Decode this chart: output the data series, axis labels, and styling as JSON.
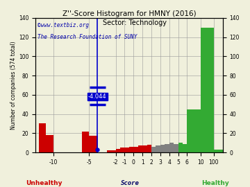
{
  "title": "Z''-Score Histogram for HMNY (2016)",
  "subtitle": "Sector: Technology",
  "watermark1": "©www.textbiz.org",
  "watermark2": "The Research Foundation of SUNY",
  "ylabel_left": "Number of companies (574 total)",
  "xlabel": "Score",
  "xlabel_unhealthy": "Unhealthy",
  "xlabel_healthy": "Healthy",
  "marker_value": -4.044,
  "marker_label": "-4.044",
  "ylim": [
    0,
    140
  ],
  "background_color": "#f0f0dc",
  "grid_color": "#999999",
  "marker_color": "#0000cc",
  "title_color": "#000000",
  "watermark_color": "#0000aa",
  "unhealthy_color": "#cc0000",
  "healthy_color": "#33aa33",
  "score_ticks": [
    -10,
    -5,
    -2,
    -1,
    0,
    1,
    2,
    3,
    4,
    5,
    6,
    10,
    100
  ],
  "display_pos": [
    0,
    5,
    8,
    9,
    10,
    11,
    12,
    13,
    14,
    15,
    16,
    17,
    18
  ],
  "bar_definitions": [
    [
      -12,
      -11,
      30,
      "#cc0000"
    ],
    [
      -11,
      -10,
      18,
      "#cc0000"
    ],
    [
      -6,
      -5,
      22,
      "#cc0000"
    ],
    [
      -5,
      -4,
      17,
      "#cc0000"
    ],
    [
      -3,
      -2,
      2,
      "#cc0000"
    ],
    [
      -2,
      -1,
      5,
      "#cc0000"
    ],
    [
      -1,
      0,
      7,
      "#cc0000"
    ],
    [
      0,
      1,
      8,
      "#cc0000"
    ],
    [
      1,
      2,
      9,
      "#cc0000"
    ],
    [
      2,
      3,
      6,
      "#808080"
    ],
    [
      3,
      4,
      11,
      "#808080"
    ],
    [
      4,
      5,
      10,
      "#808080"
    ],
    [
      5,
      6,
      10,
      "#33aa33"
    ],
    [
      6,
      10,
      45,
      "#33aa33"
    ],
    [
      10,
      100,
      130,
      "#33aa33"
    ],
    [
      100,
      110,
      3,
      "#33aa33"
    ]
  ],
  "small_bars": [
    [
      -0.5,
      0.5,
      3,
      "#cc0000"
    ],
    [
      0.5,
      1.5,
      4,
      "#cc0000"
    ],
    [
      1.5,
      2.5,
      5,
      "#cc0000"
    ],
    [
      2.5,
      3.5,
      6,
      "#cc0000"
    ],
    [
      3.5,
      4.5,
      7,
      "#cc0000"
    ],
    [
      4.5,
      5.5,
      8,
      "#cc0000"
    ],
    [
      5.5,
      6.5,
      8,
      "#cc0000"
    ],
    [
      6.5,
      7.5,
      7,
      "#cc0000"
    ],
    [
      7.5,
      8.5,
      8,
      "#808080"
    ],
    [
      8.5,
      9.5,
      9,
      "#808080"
    ],
    [
      9.5,
      10.5,
      9,
      "#808080"
    ],
    [
      10.5,
      11.5,
      10,
      "#808080"
    ],
    [
      11.5,
      12.5,
      11,
      "#808080"
    ],
    [
      12.5,
      13.5,
      11,
      "#808080"
    ],
    [
      13.5,
      14.5,
      12,
      "#808080"
    ],
    [
      14.5,
      15.5,
      10,
      "#808080"
    ],
    [
      15.5,
      16.5,
      9,
      "#808080"
    ],
    [
      16.5,
      17.5,
      9,
      "#33aa33"
    ],
    [
      17.5,
      18.5,
      10,
      "#33aa33"
    ],
    [
      18.5,
      19.5,
      9,
      "#33aa33"
    ],
    [
      19.5,
      20.5,
      10,
      "#33aa33"
    ],
    [
      20.5,
      21.5,
      10,
      "#33aa33"
    ],
    [
      21.5,
      22.5,
      9,
      "#33aa33"
    ],
    [
      22.5,
      23.5,
      11,
      "#33aa33"
    ],
    [
      23.5,
      24.5,
      10,
      "#33aa33"
    ],
    [
      24.5,
      25.5,
      10,
      "#33aa33"
    ],
    [
      25.5,
      26.5,
      10,
      "#33aa33"
    ]
  ]
}
